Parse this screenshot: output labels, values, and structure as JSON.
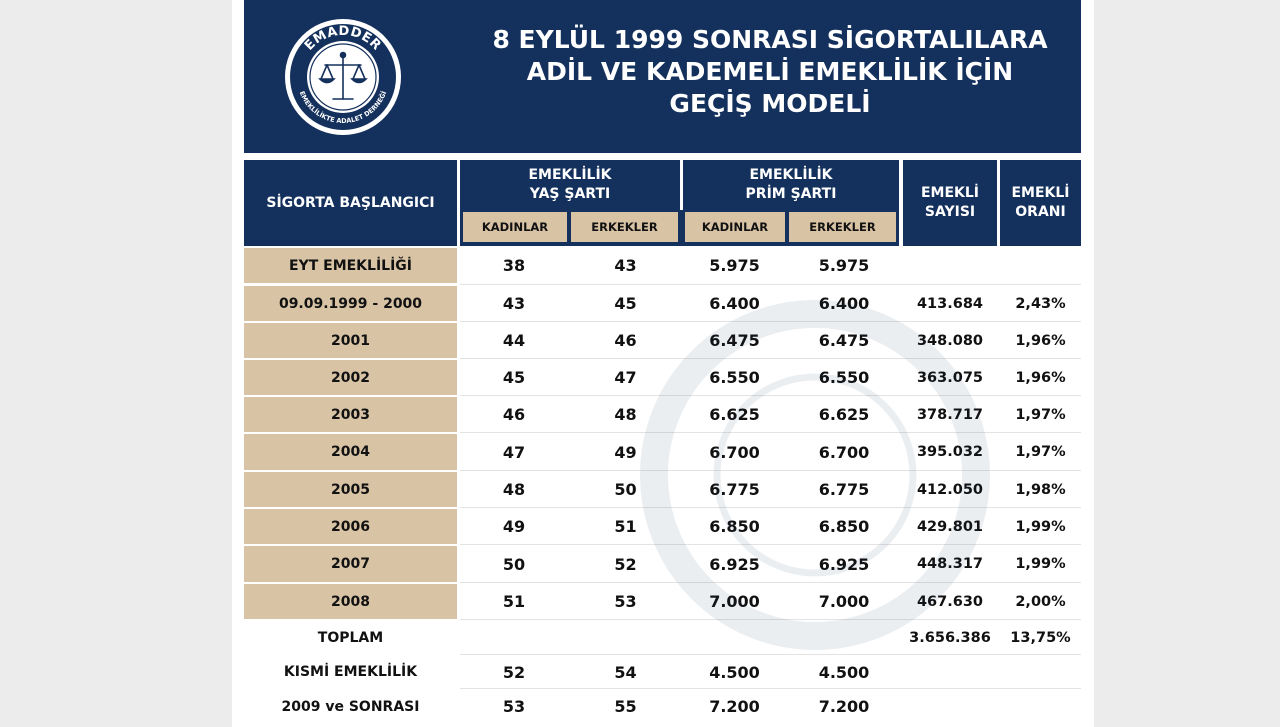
{
  "title": {
    "line1": "8 EYLÜL 1999 SONRASI SİGORTALILARA",
    "line2": "ADİL VE KADEMELİ EMEKLİLİK İÇİN",
    "line3": "GEÇİŞ MODELİ"
  },
  "logo": {
    "top_text": "EMADDER",
    "ring_text": "EMEKLİLİKTE ADALET DERNEĞİ",
    "icon": "scales-of-justice-icon"
  },
  "colors": {
    "navy": "#14305c",
    "tan": "#d8c3a5",
    "white": "#ffffff"
  },
  "table": {
    "headers": {
      "start": "SİGORTA BAŞLANGICI",
      "age_line1": "EMEKLİLİK",
      "age_line2": "YAŞ ŞARTI",
      "prim_line1": "EMEKLİLİK",
      "prim_line2": "PRİM ŞARTI",
      "count_line1": "EMEKLİ",
      "count_line2": "SAYISI",
      "rate_line1": "EMEKLİ",
      "rate_line2": "ORANI",
      "women": "KADINLAR",
      "men": "ERKEKLER"
    },
    "rows": [
      {
        "label": "EYT EMEKLİLİĞİ",
        "age_w": "38",
        "age_m": "43",
        "prim_w": "5.975",
        "prim_m": "5.975",
        "count": "",
        "rate": ""
      },
      {
        "label": "09.09.1999  - 2000",
        "age_w": "43",
        "age_m": "45",
        "prim_w": "6.400",
        "prim_m": "6.400",
        "count": "413.684",
        "rate": "2,43%"
      },
      {
        "label": "2001",
        "age_w": "44",
        "age_m": "46",
        "prim_w": "6.475",
        "prim_m": "6.475",
        "count": "348.080",
        "rate": "1,96%"
      },
      {
        "label": "2002",
        "age_w": "45",
        "age_m": "47",
        "prim_w": "6.550",
        "prim_m": "6.550",
        "count": "363.075",
        "rate": "1,96%"
      },
      {
        "label": "2003",
        "age_w": "46",
        "age_m": "48",
        "prim_w": "6.625",
        "prim_m": "6.625",
        "count": "378.717",
        "rate": "1,97%"
      },
      {
        "label": "2004",
        "age_w": "47",
        "age_m": "49",
        "prim_w": "6.700",
        "prim_m": "6.700",
        "count": "395.032",
        "rate": "1,97%"
      },
      {
        "label": "2005",
        "age_w": "48",
        "age_m": "50",
        "prim_w": "6.775",
        "prim_m": "6.775",
        "count": "412.050",
        "rate": "1,98%"
      },
      {
        "label": "2006",
        "age_w": "49",
        "age_m": "51",
        "prim_w": "6.850",
        "prim_m": "6.850",
        "count": "429.801",
        "rate": "1,99%"
      },
      {
        "label": "2007",
        "age_w": "50",
        "age_m": "52",
        "prim_w": "6.925",
        "prim_m": "6.925",
        "count": "448.317",
        "rate": "1,99%"
      },
      {
        "label": "2008",
        "age_w": "51",
        "age_m": "53",
        "prim_w": "7.000",
        "prim_m": "7.000",
        "count": "467.630",
        "rate": "2,00%"
      },
      {
        "label": "TOPLAM",
        "age_w": "",
        "age_m": "",
        "prim_w": "",
        "prim_m": "",
        "count": "3.656.386",
        "rate": "13,75%"
      },
      {
        "label": "KISMİ EMEKLİLİK",
        "age_w": "52",
        "age_m": "54",
        "prim_w": "4.500",
        "prim_m": "4.500",
        "count": "",
        "rate": ""
      },
      {
        "label": "2009 ve SONRASI",
        "age_w": "53",
        "age_m": "55",
        "prim_w": "7.200",
        "prim_m": "7.200",
        "count": "",
        "rate": ""
      }
    ]
  }
}
